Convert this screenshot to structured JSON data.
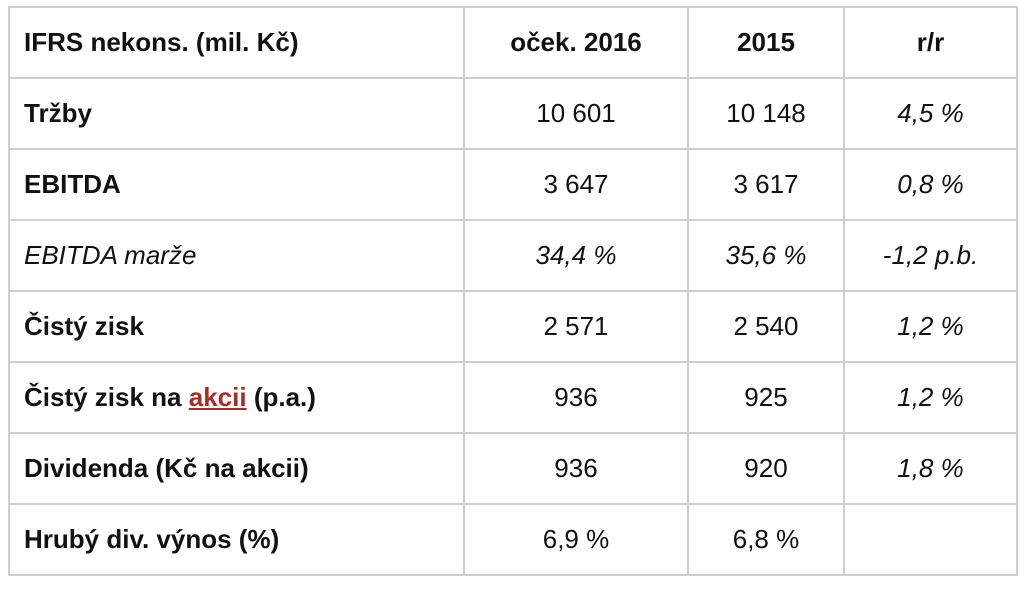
{
  "table": {
    "header": [
      "IFRS nekons. (mil. Kč)",
      "oček. 2016",
      "2015",
      "r/r"
    ],
    "rows": [
      [
        "Tržby",
        "10 601",
        "10 148",
        "4,5 %"
      ],
      [
        "EBITDA",
        "3 647",
        "3 617",
        "0,8 %"
      ],
      [
        "EBITDA marže",
        "34,4 %",
        "35,6 %",
        "-1,2 p.b."
      ],
      [
        "Čistý zisk",
        "2 571",
        "2 540",
        "1,2 %"
      ],
      [
        {
          "before": "Čistý zisk na",
          "link": "akcii",
          "after": "(p.a.)"
        },
        "936",
        "925",
        "1,2 %"
      ],
      [
        "Dividenda (Kč na akcii)",
        "936",
        "920",
        "1,8 %"
      ],
      [
        "Hrubý div. výnos (%)",
        "6,9 %",
        "6,8 %"
      ]
    ]
  }
}
